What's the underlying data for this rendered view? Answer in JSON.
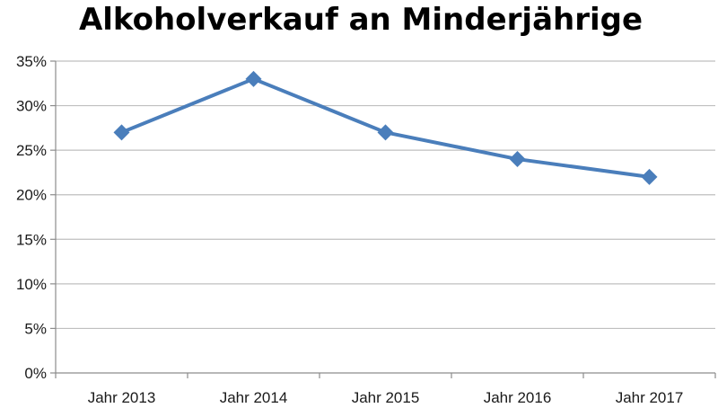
{
  "chart_data": {
    "type": "line",
    "title": "Alkoholverkauf an Minderjährige",
    "categories": [
      "Jahr 2013",
      "Jahr 2014",
      "Jahr 2015",
      "Jahr 2016",
      "Jahr 2017"
    ],
    "series": [
      {
        "values": [
          27,
          33,
          27,
          24,
          22
        ],
        "color": "#4a7ebb",
        "marker": "diamond"
      }
    ],
    "y_ticks": [
      "0%",
      "5%",
      "10%",
      "15%",
      "20%",
      "25%",
      "30%",
      "35%"
    ],
    "ylim": [
      0,
      35
    ],
    "y_unit": "%",
    "grid": true,
    "legend": "none"
  }
}
